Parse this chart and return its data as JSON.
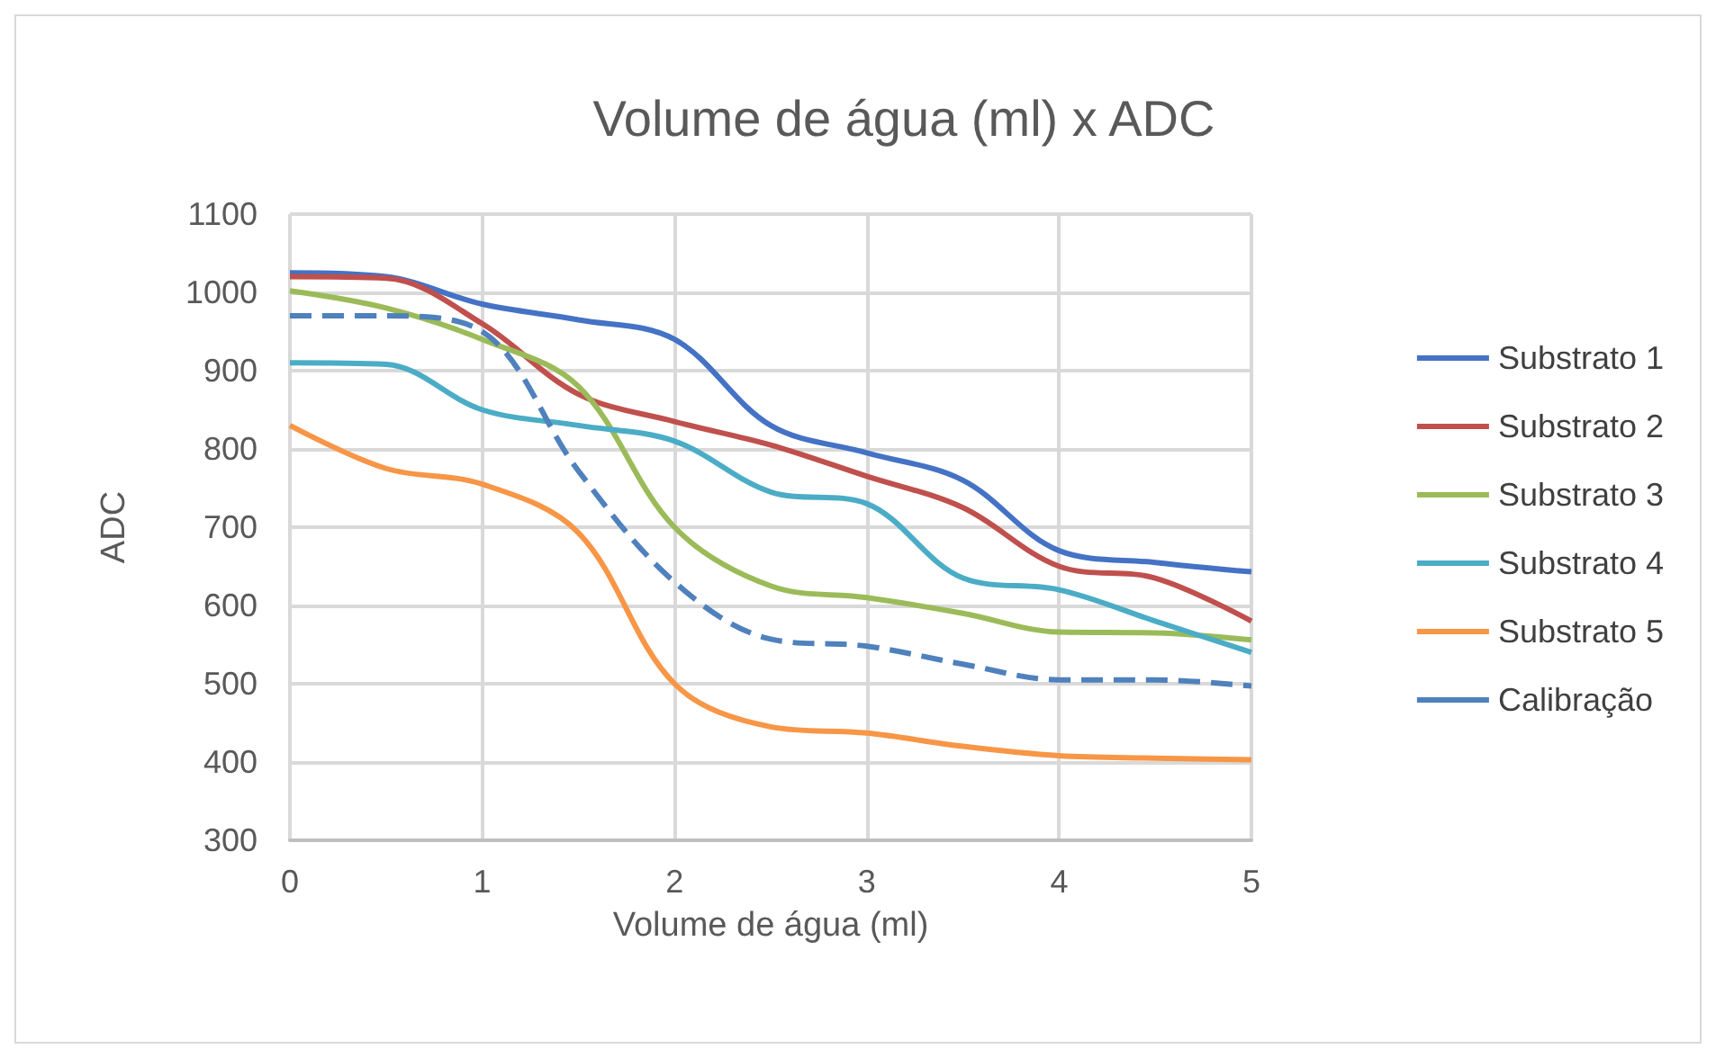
{
  "chart_data": {
    "type": "line",
    "title": "Volume de água (ml) x ADC",
    "xlabel": "Volume de água (ml)",
    "ylabel": "ADC",
    "x": [
      0,
      0.5,
      1,
      1.5,
      2,
      2.5,
      3,
      3.5,
      4,
      4.5,
      5
    ],
    "xlim": [
      0,
      5
    ],
    "xticks": [
      0,
      1,
      2,
      3,
      4,
      5
    ],
    "ylim": [
      300,
      1100
    ],
    "yticks": [
      300,
      400,
      500,
      600,
      700,
      800,
      900,
      1000,
      1100
    ],
    "grid": true,
    "legend": "right",
    "marker": "none",
    "line_style": "solid",
    "series": [
      {
        "name": "Substrato 1",
        "color": "#4472c4",
        "values": [
          1025,
          1020,
          985,
          965,
          940,
          830,
          795,
          760,
          670,
          655,
          643
        ]
      },
      {
        "name": "Substrato 2",
        "color": "#c0504d",
        "values": [
          1020,
          1018,
          960,
          870,
          835,
          805,
          765,
          725,
          650,
          635,
          580
        ]
      },
      {
        "name": "Substrato 3",
        "color": "#9bbb59",
        "values": [
          1002,
          980,
          940,
          880,
          700,
          625,
          610,
          590,
          566,
          565,
          556
        ]
      },
      {
        "name": "Substrato 4",
        "color": "#4bacc6",
        "values": [
          910,
          908,
          850,
          830,
          810,
          745,
          730,
          635,
          620,
          580,
          540
        ]
      },
      {
        "name": "Substrato 5",
        "color": "#f79646",
        "values": [
          830,
          775,
          755,
          693,
          500,
          445,
          437,
          420,
          408,
          405,
          403
        ]
      },
      {
        "name": "Calibração",
        "color": "#4f81bd",
        "line_style": "dashed",
        "values": [
          970,
          970,
          950,
          772,
          630,
          557,
          548,
          525,
          505,
          505,
          497
        ]
      }
    ]
  }
}
